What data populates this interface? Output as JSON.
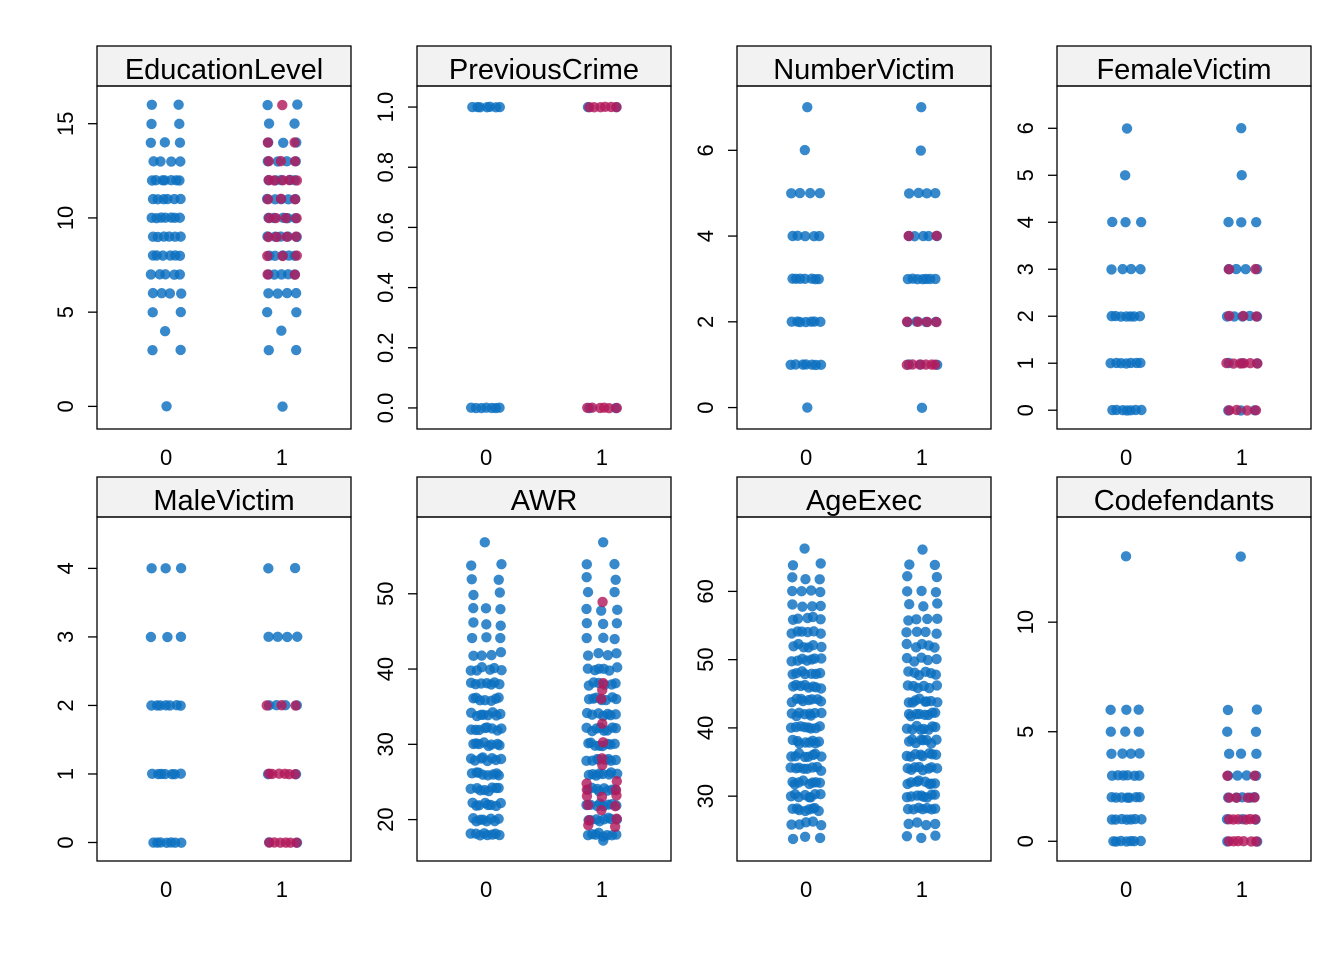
{
  "colors": {
    "blue": "#0b6fbf",
    "crimson": "#b21a5b",
    "strip_fill": "#f2f2f2"
  },
  "chart_data": [
    {
      "type": "scatter",
      "title": "EducationLevel",
      "xlabel": "",
      "ylabel": "",
      "categories": [
        "0",
        "1"
      ],
      "ylim": [
        -1.2,
        17
      ],
      "yticks": [
        0,
        5,
        10,
        15
      ],
      "ytick_labels": [
        "0",
        "5",
        "10",
        "15"
      ],
      "group0": {
        "values": [
          0,
          3,
          4,
          5,
          6,
          7,
          8,
          9,
          10,
          11,
          12,
          13,
          14,
          15,
          16
        ],
        "weights": [
          1,
          2,
          1,
          2,
          4,
          5,
          6,
          6,
          7,
          6,
          7,
          4,
          3,
          2,
          2
        ]
      },
      "group1_blue": {
        "values": [
          0,
          3,
          4,
          5,
          6,
          7,
          8,
          9,
          10,
          11,
          12,
          13,
          14,
          15,
          16
        ],
        "weights": [
          1,
          2,
          1,
          2,
          4,
          5,
          5,
          5,
          5,
          5,
          5,
          4,
          3,
          2,
          2
        ]
      },
      "group1_red": {
        "values": [
          7,
          8,
          9,
          10,
          11,
          12,
          13,
          14,
          16
        ],
        "weights": [
          2,
          3,
          4,
          4,
          3,
          5,
          3,
          2,
          1
        ]
      }
    },
    {
      "type": "scatter",
      "title": "PreviousCrime",
      "xlabel": "",
      "ylabel": "",
      "categories": [
        "0",
        "1"
      ],
      "ylim": [
        -0.07,
        1.07
      ],
      "yticks": [
        0,
        0.2,
        0.4,
        0.6,
        0.8,
        1
      ],
      "ytick_labels": [
        "0.0",
        "0.2",
        "0.4",
        "0.6",
        "0.8",
        "1.0"
      ],
      "group0": {
        "values": [
          0,
          1
        ],
        "weights": [
          7,
          7
        ]
      },
      "group1_blue": {
        "values": [
          0,
          1
        ],
        "weights": [
          2,
          2
        ]
      },
      "group1_red": {
        "values": [
          0,
          1
        ],
        "weights": [
          6,
          6
        ]
      }
    },
    {
      "type": "scatter",
      "title": "NumberVictim",
      "xlabel": "",
      "ylabel": "",
      "categories": [
        "0",
        "1"
      ],
      "ylim": [
        -0.5,
        7.5
      ],
      "yticks": [
        0,
        2,
        4,
        6
      ],
      "ytick_labels": [
        "0",
        "2",
        "4",
        "6"
      ],
      "group0": {
        "values": [
          0,
          1,
          2,
          3,
          4,
          5,
          6,
          7
        ],
        "weights": [
          1,
          7,
          7,
          7,
          5,
          4,
          1,
          1
        ]
      },
      "group1_blue": {
        "values": [
          0,
          1,
          2,
          3,
          4,
          5,
          6,
          7
        ],
        "weights": [
          1,
          3,
          4,
          7,
          5,
          4,
          1,
          1
        ]
      },
      "group1_red": {
        "values": [
          1,
          2,
          4
        ],
        "weights": [
          6,
          4,
          2
        ]
      }
    },
    {
      "type": "scatter",
      "title": "FemaleVictim",
      "xlabel": "",
      "ylabel": "",
      "categories": [
        "0",
        "1"
      ],
      "ylim": [
        -0.4,
        6.9
      ],
      "yticks": [
        0,
        1,
        2,
        3,
        4,
        5,
        6
      ],
      "ytick_labels": [
        "0",
        "1",
        "2",
        "3",
        "4",
        "5",
        "6"
      ],
      "group0": {
        "values": [
          0,
          1,
          2,
          3,
          4,
          5,
          6
        ],
        "weights": [
          7,
          7,
          7,
          4,
          3,
          1,
          1
        ]
      },
      "group1_blue": {
        "values": [
          0,
          1,
          2,
          3,
          4,
          5,
          6
        ],
        "weights": [
          3,
          3,
          5,
          4,
          3,
          1,
          1
        ]
      },
      "group1_red": {
        "values": [
          0,
          1,
          2,
          3
        ],
        "weights": [
          4,
          6,
          3,
          2
        ]
      }
    },
    {
      "type": "scatter",
      "title": "MaleVictim",
      "xlabel": "",
      "ylabel": "",
      "categories": [
        "0",
        "1"
      ],
      "ylim": [
        -0.27,
        4.75
      ],
      "yticks": [
        0,
        1,
        2,
        3,
        4
      ],
      "ytick_labels": [
        "0",
        "1",
        "2",
        "3",
        "4"
      ],
      "group0": {
        "values": [
          0,
          1,
          2,
          3,
          4
        ],
        "weights": [
          7,
          7,
          7,
          3,
          3
        ]
      },
      "group1_blue": {
        "values": [
          0,
          1,
          2,
          3,
          4
        ],
        "weights": [
          2,
          2,
          4,
          4,
          2
        ]
      },
      "group1_red": {
        "values": [
          0,
          1,
          2
        ],
        "weights": [
          6,
          6,
          3
        ]
      }
    },
    {
      "type": "scatter",
      "title": "AWR",
      "xlabel": "",
      "ylabel": "",
      "categories": [
        "0",
        "1"
      ],
      "ylim": [
        14.5,
        60.2
      ],
      "yticks": [
        20,
        30,
        40,
        50
      ],
      "ytick_labels": [
        "20",
        "30",
        "40",
        "50"
      ],
      "group0": {
        "values": [
          18,
          20,
          22,
          24,
          26,
          28,
          30,
          32,
          34,
          36,
          38,
          40,
          42,
          44,
          46,
          48,
          50,
          52,
          54,
          57
        ],
        "weights": [
          8,
          8,
          8,
          8,
          8,
          8,
          8,
          8,
          8,
          7,
          7,
          6,
          4,
          3,
          3,
          3,
          2,
          2,
          2,
          1
        ]
      },
      "group1_blue": {
        "values": [
          17,
          18,
          20,
          22,
          24,
          26,
          28,
          30,
          32,
          34,
          36,
          38,
          40,
          42,
          44,
          46,
          48,
          50,
          52,
          54,
          57
        ],
        "weights": [
          1,
          8,
          8,
          8,
          8,
          8,
          8,
          8,
          8,
          7,
          7,
          6,
          6,
          4,
          3,
          3,
          3,
          2,
          2,
          2,
          1
        ]
      },
      "group1_red": {
        "values": [
          19,
          20,
          21,
          22,
          23,
          24,
          25,
          27,
          28,
          30,
          33,
          36,
          37,
          38,
          49
        ],
        "weights": [
          2,
          2,
          1,
          2,
          3,
          2,
          2,
          1,
          1,
          1,
          1,
          1,
          1,
          1,
          1
        ]
      }
    },
    {
      "type": "scatter",
      "title": "AgeExec",
      "xlabel": "",
      "ylabel": "",
      "categories": [
        "0",
        "1"
      ],
      "ylim": [
        20.5,
        70.9
      ],
      "yticks": [
        30,
        40,
        50,
        60
      ],
      "ytick_labels": [
        "30",
        "40",
        "50",
        "60"
      ],
      "group0": {
        "values": [
          24,
          26,
          28,
          30,
          32,
          34,
          36,
          38,
          40,
          42,
          44,
          46,
          48,
          50,
          52,
          54,
          56,
          58,
          60,
          62,
          64,
          66
        ],
        "weights": [
          3,
          5,
          8,
          8,
          8,
          8,
          8,
          8,
          8,
          8,
          8,
          8,
          7,
          7,
          6,
          6,
          5,
          4,
          4,
          3,
          2,
          1
        ]
      },
      "group1_blue": {
        "values": [
          24,
          26,
          28,
          30,
          32,
          34,
          36,
          38,
          40,
          42,
          44,
          46,
          48,
          50,
          52,
          54,
          56,
          58,
          60,
          62,
          64,
          66
        ],
        "weights": [
          3,
          4,
          7,
          8,
          8,
          8,
          8,
          8,
          8,
          8,
          8,
          6,
          6,
          5,
          5,
          4,
          4,
          3,
          3,
          2,
          2,
          1
        ]
      },
      "group1_red": {
        "values": [],
        "weights": []
      }
    },
    {
      "type": "scatter",
      "title": "Codefendants",
      "xlabel": "",
      "ylabel": "",
      "categories": [
        "0",
        "1"
      ],
      "ylim": [
        -0.9,
        14.8
      ],
      "yticks": [
        0,
        5,
        10
      ],
      "ytick_labels": [
        "0",
        "5",
        "10"
      ],
      "group0": {
        "values": [
          0,
          1,
          2,
          3,
          4,
          5,
          6,
          13
        ],
        "weights": [
          7,
          7,
          7,
          6,
          4,
          3,
          3,
          1
        ]
      },
      "group1_blue": {
        "values": [
          0,
          1,
          2,
          3,
          4,
          5,
          6,
          13
        ],
        "weights": [
          2,
          3,
          5,
          4,
          3,
          2,
          2,
          1
        ]
      },
      "group1_red": {
        "values": [
          0,
          1,
          2,
          3
        ],
        "weights": [
          6,
          6,
          4,
          2
        ]
      }
    }
  ]
}
